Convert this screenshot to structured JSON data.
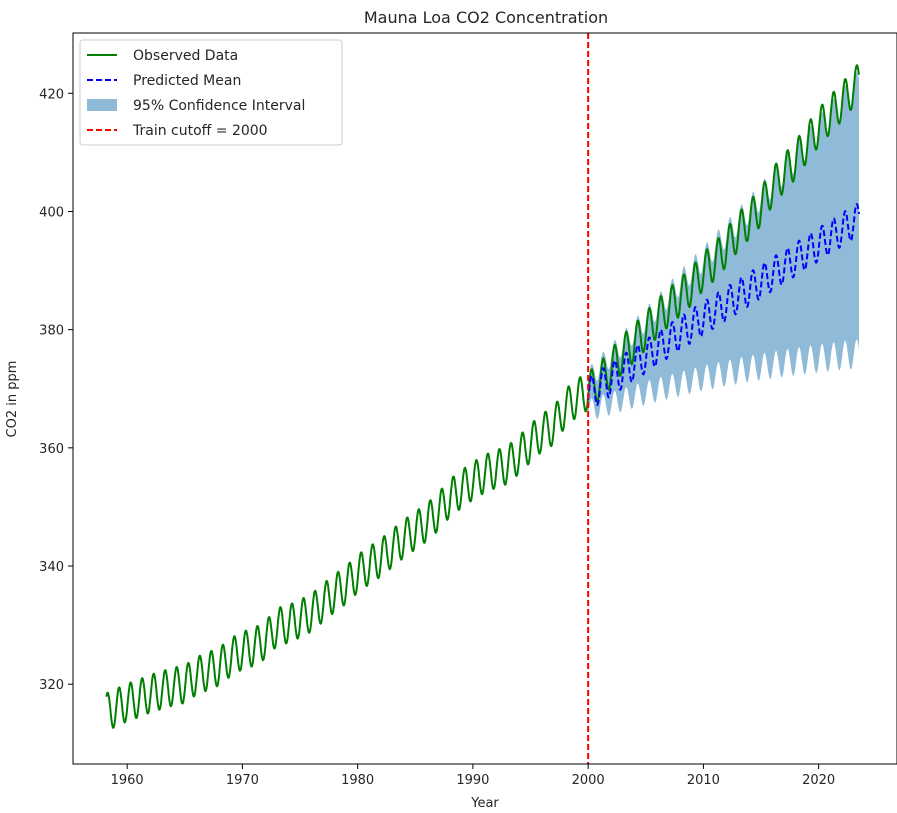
{
  "chart_data": {
    "type": "line",
    "title": "Mauna Loa CO2 Concentration",
    "xlabel": "Year",
    "ylabel": "CO2 in ppm",
    "xlim": [
      1955.3,
      2026.8
    ],
    "ylim": [
      306.5,
      430.2
    ],
    "xticks": [
      1960,
      1970,
      1980,
      1990,
      2000,
      2010,
      2020
    ],
    "yticks": [
      320,
      340,
      360,
      380,
      400,
      420
    ],
    "grid": false,
    "legend_position": "top-left",
    "train_cutoff": 2000,
    "colors": {
      "observed": "#008000",
      "predicted": "#0000ff",
      "ci": "#1f77b4",
      "cutoff": "#ff0000"
    },
    "series": [
      {
        "name": "Observed Data",
        "style": "solid",
        "x": [
          1958.2,
          1959,
          1960,
          1961,
          1962,
          1963,
          1964,
          1965,
          1966,
          1967,
          1968,
          1969,
          1970,
          1971,
          1972,
          1973,
          1974,
          1975,
          1976,
          1977,
          1978,
          1979,
          1980,
          1981,
          1982,
          1983,
          1984,
          1985,
          1986,
          1987,
          1988,
          1989,
          1990,
          1991,
          1992,
          1993,
          1994,
          1995,
          1996,
          1997,
          1998,
          1999,
          2000,
          2001,
          2002,
          2003,
          2004,
          2005,
          2006,
          2007,
          2008,
          2009,
          2010,
          2011,
          2012,
          2013,
          2014,
          2015,
          2016,
          2017,
          2018,
          2019,
          2020,
          2021,
          2022,
          2023.5
        ],
        "y": [
          315.3,
          316.0,
          316.9,
          317.6,
          318.4,
          319.0,
          319.6,
          320.0,
          321.4,
          322.2,
          323.0,
          324.6,
          325.7,
          326.3,
          327.5,
          329.7,
          330.2,
          331.1,
          332.1,
          333.8,
          335.4,
          336.8,
          338.7,
          340.1,
          341.4,
          343.0,
          344.6,
          346.0,
          347.4,
          349.2,
          351.5,
          353.0,
          354.4,
          355.6,
          356.4,
          357.1,
          358.8,
          360.8,
          362.6,
          363.7,
          366.7,
          368.4,
          369.6,
          371.3,
          373.5,
          375.9,
          377.7,
          379.8,
          381.9,
          383.8,
          385.6,
          387.4,
          389.9,
          391.6,
          393.9,
          396.5,
          398.6,
          400.8,
          404.2,
          406.5,
          408.7,
          411.6,
          414.2,
          416.4,
          418.5,
          422.0
        ],
        "seasonal_amplitude_ppm": 3.2
      },
      {
        "name": "Predicted Mean",
        "style": "dashed",
        "x": [
          2000,
          2002,
          2004,
          2006,
          2008,
          2010,
          2012,
          2014,
          2016,
          2018,
          2020,
          2022,
          2023.5
        ],
        "y": [
          369.0,
          371.6,
          374.2,
          376.8,
          379.4,
          381.9,
          384.4,
          386.9,
          389.4,
          391.9,
          394.4,
          396.9,
          398.7
        ],
        "seasonal_amplitude_ppm": 2.8
      }
    ],
    "confidence_interval": {
      "name": "95% Confidence Interval",
      "x": [
        2000,
        2002,
        2004,
        2006,
        2008,
        2010,
        2012,
        2014,
        2016,
        2018,
        2020,
        2022,
        2023.5
      ],
      "lower": [
        366.3,
        367.5,
        368.7,
        369.8,
        370.8,
        371.8,
        372.6,
        373.4,
        374.0,
        374.6,
        375.1,
        375.6,
        375.9
      ],
      "upper": [
        371.7,
        375.7,
        379.7,
        383.8,
        388.0,
        392.0,
        396.2,
        400.4,
        404.8,
        409.2,
        413.7,
        418.2,
        421.5
      ]
    },
    "legend": [
      {
        "label": "Observed Data",
        "kind": "solid-line",
        "color": "#008000"
      },
      {
        "label": "Predicted Mean",
        "kind": "dashed-line",
        "color": "#0000ff"
      },
      {
        "label": "95% Confidence Interval",
        "kind": "patch",
        "color": "#1f77b4"
      },
      {
        "label": "Train cutoff = 2000",
        "kind": "dashed-line",
        "color": "#ff0000"
      }
    ]
  }
}
